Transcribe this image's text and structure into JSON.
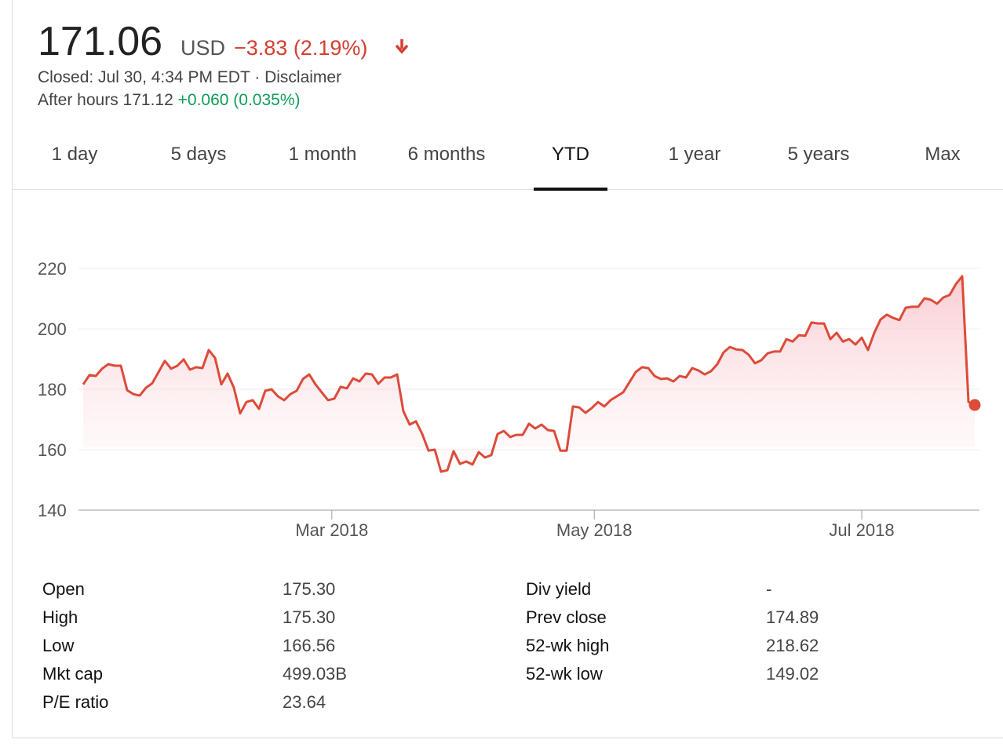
{
  "header": {
    "price": "171.06",
    "currency": "USD",
    "change": "−3.83 (2.19%)",
    "status": "Closed: Jul 30, 4:34 PM EDT",
    "disclaimer": "Disclaimer",
    "after_hours_label": "After hours 171.12",
    "after_hours_change": "+0.060 (0.035%)"
  },
  "tabs": [
    "1 day",
    "5 days",
    "1 month",
    "6 months",
    "YTD",
    "1 year",
    "5 years",
    "Max"
  ],
  "active_tab_index": 4,
  "chart_data": {
    "type": "line",
    "color": "#dd4b39",
    "values": [
      181.6,
      184.7,
      184.4,
      186.8,
      188.3,
      187.8,
      187.8,
      179.7,
      178.4,
      177.9,
      180.5,
      182,
      185.7,
      189.4,
      186.8,
      187.8,
      189.9,
      186.5,
      187.3,
      187,
      193,
      190.4,
      181.6,
      185.2,
      180.5,
      172,
      175.8,
      176.4,
      173.5,
      179.5,
      180,
      177.7,
      176.4,
      178.4,
      179.5,
      183.4,
      184.9,
      181.6,
      179,
      176.4,
      176.9,
      180.8,
      180.3,
      183.6,
      182.6,
      185.2,
      184.9,
      181.8,
      183.9,
      183.9,
      184.9,
      172.7,
      168.3,
      169.4,
      165.2,
      159.7,
      160,
      152.7,
      153.2,
      159.5,
      155.3,
      156.1,
      155.1,
      159.2,
      157.4,
      158.2,
      165.2,
      166.2,
      164.2,
      164.9,
      164.9,
      168.6,
      167,
      168.3,
      166.5,
      166.2,
      159.7,
      159.7,
      174.3,
      174,
      172.2,
      173.8,
      175.8,
      174.3,
      176.4,
      177.7,
      179,
      182.3,
      185.7,
      187.3,
      187,
      184.4,
      183.4,
      183.6,
      182.6,
      184.4,
      183.9,
      187,
      186.2,
      184.9,
      186,
      188.3,
      192.2,
      194,
      193.2,
      193,
      191.4,
      188.6,
      189.6,
      191.9,
      192.5,
      192.5,
      196.6,
      195.8,
      197.9,
      197.7,
      202.1,
      201.8,
      201.8,
      196.6,
      198.7,
      195.8,
      196.6,
      194.8,
      197.1,
      193,
      198.7,
      203.1,
      204.7,
      203.6,
      202.9,
      207,
      207.3,
      207.3,
      210.1,
      209.6,
      208.3,
      210.4,
      211.2,
      214.8,
      217.4,
      175.8,
      174.8
    ],
    "xlim": [
      -0.75,
      142.75
    ],
    "xticks": [
      {
        "value": 39.6,
        "label": "Mar 2018"
      },
      {
        "value": 81.4,
        "label": "May 2018"
      },
      {
        "value": 124,
        "label": "Jul 2018"
      }
    ],
    "ylim": [
      140,
      220
    ],
    "yticks": [
      140,
      160,
      180,
      200,
      220
    ],
    "grid": true
  },
  "stats": {
    "left": [
      [
        "Open",
        "175.30"
      ],
      [
        "High",
        "175.30"
      ],
      [
        "Low",
        "166.56"
      ],
      [
        "Mkt cap",
        "499.03B"
      ],
      [
        "P/E ratio",
        "23.64"
      ]
    ],
    "right": [
      [
        "Div yield",
        "-"
      ],
      [
        "Prev close",
        "174.89"
      ],
      [
        "52-wk high",
        "218.62"
      ],
      [
        "52-wk low",
        "149.02"
      ]
    ]
  }
}
